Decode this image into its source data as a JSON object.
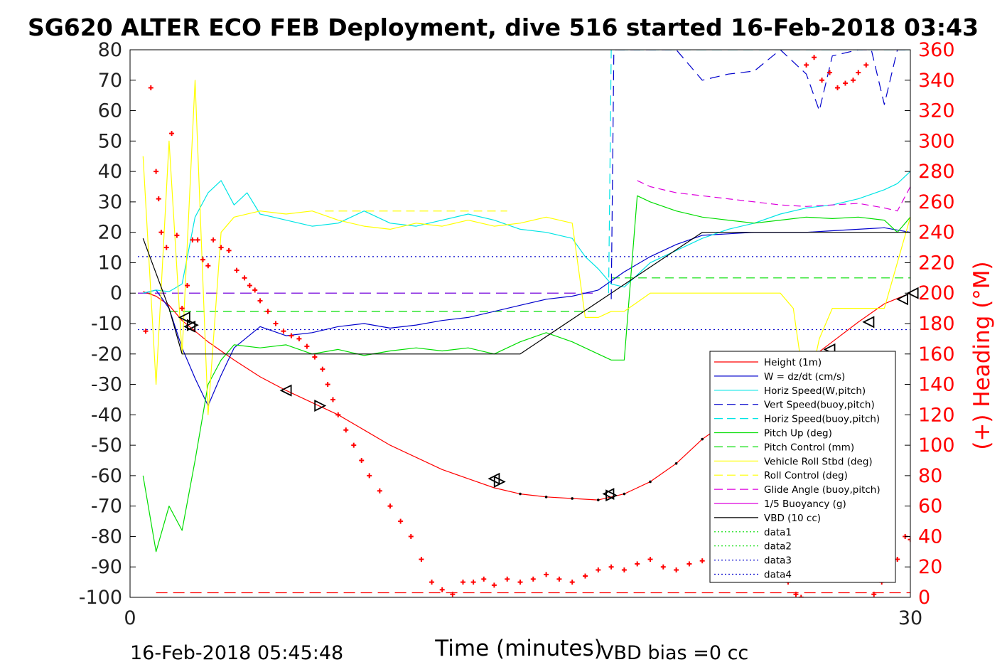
{
  "colors": {
    "height": "#ff0000",
    "w": "#0000cc",
    "horiz_speed": "#00e5e5",
    "pitch": "#00dd00",
    "roll": "#ffff00",
    "glide": "#dd00dd",
    "vbd": "#000000",
    "heading_axis": "#ff0000"
  },
  "chart_data": {
    "type": "line",
    "title": "SG620 ALTER ECO FEB Deployment, dive 516 started 16-Feb-2018 03:43",
    "xlabel": "Time (minutes)",
    "ylabel_right": "(+) Heading (°M)",
    "xlim": [
      0,
      30
    ],
    "ylim": [
      -100,
      80
    ],
    "ylim_right": [
      0,
      360
    ],
    "x_ticks": [
      "0",
      "30"
    ],
    "y_ticks": [
      "80",
      "70",
      "60",
      "50",
      "40",
      "30",
      "20",
      "10",
      "0",
      "-10",
      "-20",
      "-30",
      "-40",
      "-50",
      "-60",
      "-70",
      "-80",
      "-90",
      "-100"
    ],
    "y_ticks_right": [
      "360",
      "340",
      "320",
      "300",
      "280",
      "260",
      "240",
      "220",
      "200",
      "180",
      "160",
      "140",
      "120",
      "100",
      "80",
      "60",
      "40",
      "20",
      "0"
    ],
    "footer_left": "16-Feb-2018 05:45:48",
    "footer_right": "VBD bias =0 cc",
    "legend_position": "lower-right",
    "legend": [
      {
        "label": "Height (1m)",
        "color": "#ff0000",
        "dash": "solid"
      },
      {
        "label": "W = dz/dt (cm/s)",
        "color": "#0000cc",
        "dash": "solid"
      },
      {
        "label": "Horiz Speed(W,pitch)",
        "color": "#00e5e5",
        "dash": "solid"
      },
      {
        "label": "Vert Speed(buoy,pitch)",
        "color": "#0000cc",
        "dash": "dashed"
      },
      {
        "label": "Horiz Speed(buoy,pitch)",
        "color": "#00e5e5",
        "dash": "dashed"
      },
      {
        "label": "Pitch Up (deg)",
        "color": "#00dd00",
        "dash": "solid"
      },
      {
        "label": "Pitch Control (mm)",
        "color": "#00dd00",
        "dash": "dashed"
      },
      {
        "label": "Vehicle Roll Stbd (deg)",
        "color": "#ffff00",
        "dash": "solid"
      },
      {
        "label": "Roll Control (deg)",
        "color": "#ffff00",
        "dash": "dashed"
      },
      {
        "label": "Glide Angle (buoy,pitch)",
        "color": "#dd00dd",
        "dash": "dashed"
      },
      {
        "label": "1/5 Buoyancy (g)",
        "color": "#dd00dd",
        "dash": "solid"
      },
      {
        "label": "VBD (10 cc)",
        "color": "#000000",
        "dash": "solid"
      },
      {
        "label": "data1",
        "color": "#00dd00",
        "dash": "dotted"
      },
      {
        "label": "data2",
        "color": "#00dd00",
        "dash": "dotted"
      },
      {
        "label": "data3",
        "color": "#0000cc",
        "dash": "dotted"
      },
      {
        "label": "data4",
        "color": "#0000cc",
        "dash": "dotted"
      }
    ],
    "series": [
      {
        "name": "Height (1m)",
        "x": [
          0.5,
          1.0,
          1.5,
          2.0,
          3.0,
          4.0,
          5.0,
          6.0,
          7.0,
          8.0,
          9.0,
          10.0,
          11.0,
          12.0,
          13.0,
          14.0,
          15.0,
          16.0,
          17.0,
          18.0,
          19.0,
          20.0,
          21.0,
          22.0,
          23.0,
          24.0,
          25.0,
          26.0,
          27.0,
          28.0,
          29.0,
          30.0
        ],
        "y": [
          0.5,
          -1.0,
          -4.0,
          -9.0,
          -16.0,
          -22.0,
          -27.5,
          -32.0,
          -36.0,
          -40.0,
          -45.0,
          -50.0,
          -54.0,
          -58.0,
          -61.0,
          -64.0,
          -66.0,
          -67.0,
          -67.5,
          -68.0,
          -66.0,
          -62.0,
          -56.0,
          -48.0,
          -42.0,
          -36.0,
          -29.0,
          -22.5,
          -16.0,
          -9.5,
          -3.5,
          0.0
        ]
      },
      {
        "name": "W = dz/dt (cm/s)",
        "x": [
          0.5,
          1.0,
          1.5,
          2.0,
          2.5,
          3.0,
          3.5,
          4.0,
          5.0,
          6.0,
          7.0,
          8.0,
          9.0,
          10.0,
          11.0,
          12.0,
          13.0,
          14.0,
          15.0,
          16.0,
          17.0,
          18.0,
          19.0,
          20.0,
          21.0,
          22.0,
          23.0,
          24.0,
          25.0,
          26.0,
          27.0,
          28.0,
          29.0,
          30.0,
          30.5,
          31.0,
          31.5
        ],
        "y": [
          0.0,
          1.0,
          -5.0,
          -18.0,
          -28.0,
          -37.0,
          -27.0,
          -18.0,
          -11.0,
          -14.0,
          -13.0,
          -11.0,
          -10.0,
          -11.5,
          -10.5,
          -9.0,
          -8.0,
          -6.0,
          -4.0,
          -2.0,
          -1.0,
          1.0,
          7.0,
          12.0,
          16.0,
          19.0,
          19.5,
          20.0,
          20.0,
          20.0,
          20.5,
          21.0,
          21.5,
          20.0,
          14.0,
          10.0,
          1.0
        ]
      },
      {
        "name": "Horiz Speed(W,pitch)",
        "x": [
          0.5,
          1.0,
          1.5,
          2.0,
          2.5,
          3.0,
          3.5,
          4.0,
          4.5,
          5.0,
          6.0,
          7.0,
          8.0,
          9.0,
          10.0,
          11.0,
          12.0,
          13.0,
          14.0,
          15.0,
          16.0,
          17.0,
          17.5,
          18.0,
          18.5,
          19.0,
          20.0,
          21.0,
          22.0,
          23.0,
          24.0,
          25.0,
          26.0,
          27.0,
          28.0,
          29.0,
          29.5,
          30.0,
          30.5,
          31.0,
          31.5
        ],
        "y": [
          0.0,
          1.0,
          0.5,
          3.0,
          25.0,
          33.0,
          37.0,
          29.0,
          33.0,
          26.0,
          24.0,
          22.0,
          23.0,
          27.0,
          23.0,
          22.0,
          24.0,
          26.0,
          24.0,
          21.0,
          20.0,
          18.0,
          12.0,
          8.0,
          3.0,
          2.0,
          10.0,
          14.0,
          18.0,
          21.0,
          23.0,
          26.0,
          28.0,
          29.0,
          31.0,
          34.0,
          36.0,
          40.0,
          33.0,
          30.0,
          10.0
        ]
      },
      {
        "name": "Pitch Up (deg)",
        "x": [
          0.5,
          1.0,
          1.5,
          2.0,
          2.5,
          3.0,
          3.5,
          4.0,
          5.0,
          6.0,
          7.0,
          8.0,
          9.0,
          10.0,
          11.0,
          12.0,
          13.0,
          14.0,
          15.0,
          16.0,
          17.0,
          18.0,
          18.5,
          19.0,
          19.5,
          20.0,
          21.0,
          22.0,
          23.0,
          24.0,
          25.0,
          26.0,
          27.0,
          28.0,
          29.0,
          29.5,
          30.0,
          30.5,
          31.0,
          31.5
        ],
        "y": [
          -60.0,
          -85.0,
          -70.0,
          -78.0,
          -55.0,
          -30.0,
          -22.0,
          -17.0,
          -18.0,
          -17.0,
          -20.0,
          -18.5,
          -20.5,
          -19.0,
          -18.0,
          -19.0,
          -18.0,
          -20.0,
          -16.0,
          -13.0,
          -16.0,
          -20.0,
          -22.0,
          -22.0,
          32.0,
          30.0,
          27.0,
          25.0,
          24.0,
          23.0,
          24.0,
          25.0,
          24.5,
          25.0,
          24.0,
          20.0,
          25.0,
          31.0,
          27.0,
          10.0
        ]
      },
      {
        "name": "Vehicle Roll Stbd (deg)",
        "x": [
          0.5,
          1.0,
          1.5,
          2.0,
          2.5,
          3.0,
          3.5,
          4.0,
          5.0,
          6.0,
          7.0,
          8.0,
          9.0,
          10.0,
          11.0,
          12.0,
          13.0,
          14.0,
          15.0,
          16.0,
          17.0,
          17.5,
          18.0,
          18.5,
          19.0,
          20.0,
          21.0,
          22.0,
          23.0,
          24.0,
          25.0,
          25.5,
          26.0,
          26.5,
          27.0,
          28.0,
          29.0,
          29.5,
          30.0,
          30.5,
          31.0,
          31.5
        ],
        "y": [
          45.0,
          -30.0,
          50.0,
          -20.0,
          70.0,
          -40.0,
          20.0,
          25.0,
          27.0,
          26.0,
          27.0,
          24.0,
          22.0,
          21.0,
          23.0,
          22.0,
          24.0,
          22.0,
          23.0,
          25.0,
          23.0,
          -8.0,
          -8.0,
          -6.0,
          -6.0,
          0.0,
          0.0,
          0.0,
          0.0,
          0.0,
          0.0,
          -5.0,
          -35.0,
          -15.0,
          -5.0,
          -5.0,
          -5.0,
          10.0,
          25.0,
          25.0,
          10.0,
          0.0
        ]
      },
      {
        "name": "Glide Angle (buoy,pitch)",
        "x": [
          19.5,
          20.0,
          21.0,
          22.0,
          23.0,
          24.0,
          25.0,
          26.0,
          27.0,
          28.0,
          29.0,
          29.5,
          30.0,
          30.5
        ],
        "y": [
          37.0,
          35.0,
          33.0,
          32.0,
          31.0,
          30.0,
          29.0,
          28.5,
          29.0,
          29.5,
          28.0,
          27.0,
          35.0,
          30.0
        ]
      },
      {
        "name": "VBD (10 cc)",
        "x": [
          0.5,
          1.5,
          2.0,
          2.5,
          14.0,
          15.0,
          18.5,
          22.0,
          28.0,
          29.0,
          31.5
        ],
        "y": [
          18.0,
          -5.0,
          -20.0,
          -20.0,
          -20.0,
          -20.0,
          0.0,
          20.0,
          20.0,
          20.0,
          20.0
        ]
      },
      {
        "name": "Vert Speed(buoy,pitch)",
        "x": [
          18.5,
          18.6,
          19.0,
          20.0,
          21.0,
          22.0,
          23.0,
          24.0,
          25.0,
          26.0,
          26.5,
          27.0,
          28.0,
          28.5,
          29.0,
          29.5,
          30.0,
          30.5,
          31.0
        ],
        "y": [
          -2.0,
          80.0,
          80.0,
          80.0,
          80.0,
          70.0,
          72.0,
          73.0,
          80.0,
          72.0,
          60.0,
          78.0,
          80.0,
          80.0,
          62.0,
          80.0,
          80.0,
          70.0,
          0.0
        ]
      },
      {
        "name": "Horiz Speed(buoy,pitch)",
        "x": [
          18.4,
          18.5,
          31.2,
          31.3
        ],
        "y": [
          0.0,
          80.0,
          80.0,
          2.0
        ]
      }
    ],
    "constant_lines": [
      {
        "name": "Pitch Control (mm)",
        "segments": [
          [
            [
              0.5,
              0.0
            ],
            [
              1.3,
              0.0
            ]
          ],
          [
            [
              1.5,
              -6.0
            ],
            [
              18.0,
              -6.0
            ]
          ],
          [
            [
              18.5,
              5.0
            ],
            [
              30.0,
              5.0
            ]
          ]
        ]
      },
      {
        "name": "Roll Control (deg)",
        "segments": [
          [
            [
              7.5,
              27.0
            ],
            [
              14.5,
              27.0
            ]
          ]
        ]
      },
      {
        "name": "1/5 Buoyancy (g)",
        "segments": [
          [
            [
              0.3,
              0.0
            ],
            [
              18.0,
              0.0
            ]
          ]
        ]
      },
      {
        "name": "data3",
        "segments": [
          [
            [
              0.3,
              12.0
            ],
            [
              31.5,
              12.0
            ]
          ]
        ]
      },
      {
        "name": "data4",
        "segments": [
          [
            [
              0.3,
              -12.0
            ],
            [
              31.5,
              -12.0
            ]
          ]
        ]
      },
      {
        "name": "Height floor",
        "segments": [
          [
            [
              1.0,
              -98.5
            ],
            [
              31.5,
              -98.5
            ]
          ]
        ]
      }
    ],
    "heading_points": {
      "unit": "degM",
      "x": [
        0.6,
        0.8,
        1.0,
        1.1,
        1.2,
        1.4,
        1.6,
        1.8,
        2.0,
        2.2,
        2.4,
        2.6,
        2.8,
        3.0,
        3.2,
        3.5,
        3.8,
        4.1,
        4.4,
        4.6,
        4.8,
        5.0,
        5.3,
        5.6,
        5.9,
        6.2,
        6.5,
        6.8,
        7.1,
        7.4,
        7.6,
        7.8,
        8.0,
        8.3,
        8.6,
        8.9,
        9.2,
        9.6,
        10.0,
        10.4,
        10.8,
        11.2,
        11.6,
        12.0,
        12.4,
        12.8,
        13.2,
        13.6,
        14.0,
        14.5,
        15.0,
        15.5,
        16.0,
        16.5,
        17.0,
        17.5,
        18.0,
        18.5,
        19.0,
        19.5,
        20.0,
        20.5,
        21.0,
        21.5,
        22.0,
        22.5,
        23.0,
        23.5,
        24.0,
        24.5,
        25.0,
        25.3,
        25.6,
        25.8,
        26.0,
        26.3,
        26.6,
        26.9,
        27.2,
        27.5,
        27.8,
        28.0,
        28.3,
        28.6,
        28.9,
        29.2,
        29.5,
        29.8,
        30.0,
        30.3,
        30.6,
        30.9,
        31.2,
        31.5
      ],
      "y": [
        175,
        335,
        280,
        262,
        240,
        230,
        305,
        238,
        190,
        205,
        235,
        235,
        222,
        218,
        235,
        230,
        228,
        215,
        210,
        205,
        202,
        195,
        188,
        180,
        175,
        172,
        170,
        165,
        158,
        150,
        140,
        130,
        120,
        110,
        100,
        90,
        80,
        70,
        60,
        50,
        40,
        25,
        10,
        5,
        2,
        10,
        10,
        12,
        8,
        12,
        10,
        12,
        15,
        12,
        10,
        14,
        18,
        20,
        18,
        22,
        25,
        20,
        18,
        22,
        24,
        20,
        22,
        20,
        25,
        28,
        20,
        10,
        2,
        0,
        350,
        355,
        340,
        345,
        335,
        338,
        340,
        345,
        350,
        2,
        10,
        20,
        25,
        40,
        38,
        20,
        25,
        35,
        5,
        30
      ]
    },
    "markers": [
      {
        "dir": "left",
        "x": 2.1,
        "y": -8.0
      },
      {
        "dir": "left",
        "x": 2.3,
        "y": -11.0
      },
      {
        "dir": "right",
        "x": 2.4,
        "y": -10.5
      },
      {
        "dir": "left",
        "x": 6.0,
        "y": -32.0
      },
      {
        "dir": "right",
        "x": 7.3,
        "y": -37.0
      },
      {
        "dir": "left",
        "x": 14.0,
        "y": -61.0
      },
      {
        "dir": "right",
        "x": 14.2,
        "y": -62.0
      },
      {
        "dir": "left",
        "x": 18.4,
        "y": -66.0
      },
      {
        "dir": "right",
        "x": 18.5,
        "y": -66.5
      },
      {
        "dir": "left",
        "x": 24.8,
        "y": -33.0
      },
      {
        "dir": "left",
        "x": 25.6,
        "y": -28.0
      },
      {
        "dir": "left",
        "x": 26.9,
        "y": -18.5
      },
      {
        "dir": "left",
        "x": 28.4,
        "y": -9.5
      },
      {
        "dir": "left",
        "x": 29.7,
        "y": -2.0
      },
      {
        "dir": "left",
        "x": 30.1,
        "y": 0.0
      }
    ]
  }
}
